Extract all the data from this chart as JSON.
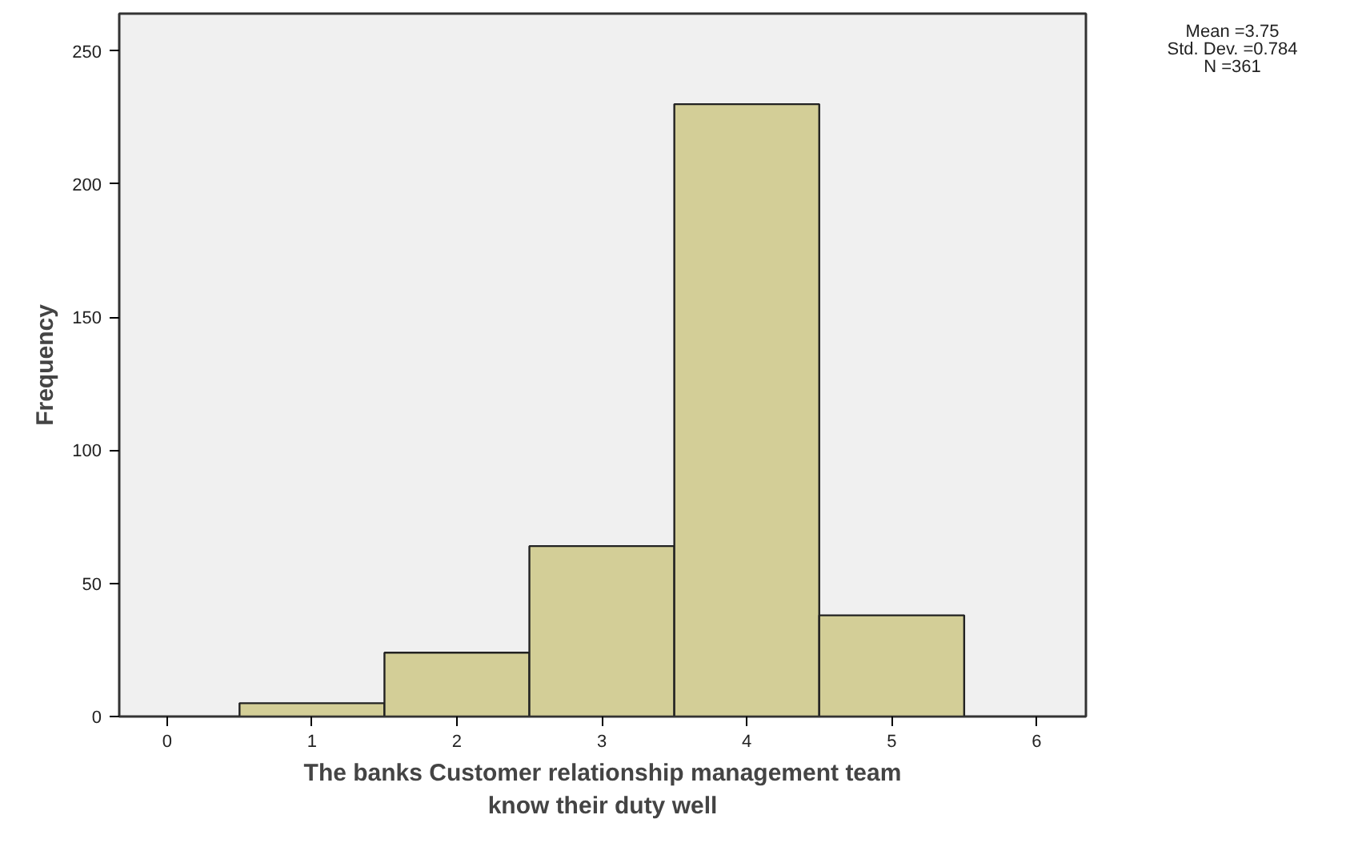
{
  "chart_data": {
    "type": "histogram",
    "xlabel": "The banks Customer relationship management team\nknow their duty well",
    "ylabel": "Frequency",
    "bins": [
      0.5,
      1.5,
      2.5,
      3.5,
      4.5,
      5.5
    ],
    "values": [
      5,
      24,
      64,
      230,
      38
    ],
    "color": "#d3ce97",
    "xlim": [
      -0.33,
      6.34
    ],
    "ylim": [
      0,
      264
    ],
    "xticks": [
      0,
      1,
      2,
      3,
      4,
      5,
      6
    ],
    "yticks": [
      0,
      50,
      100,
      150,
      200,
      250
    ],
    "grid": false,
    "annotations": [
      "Mean =3.75",
      "Std. Dev. =0.784",
      "N =361"
    ]
  }
}
